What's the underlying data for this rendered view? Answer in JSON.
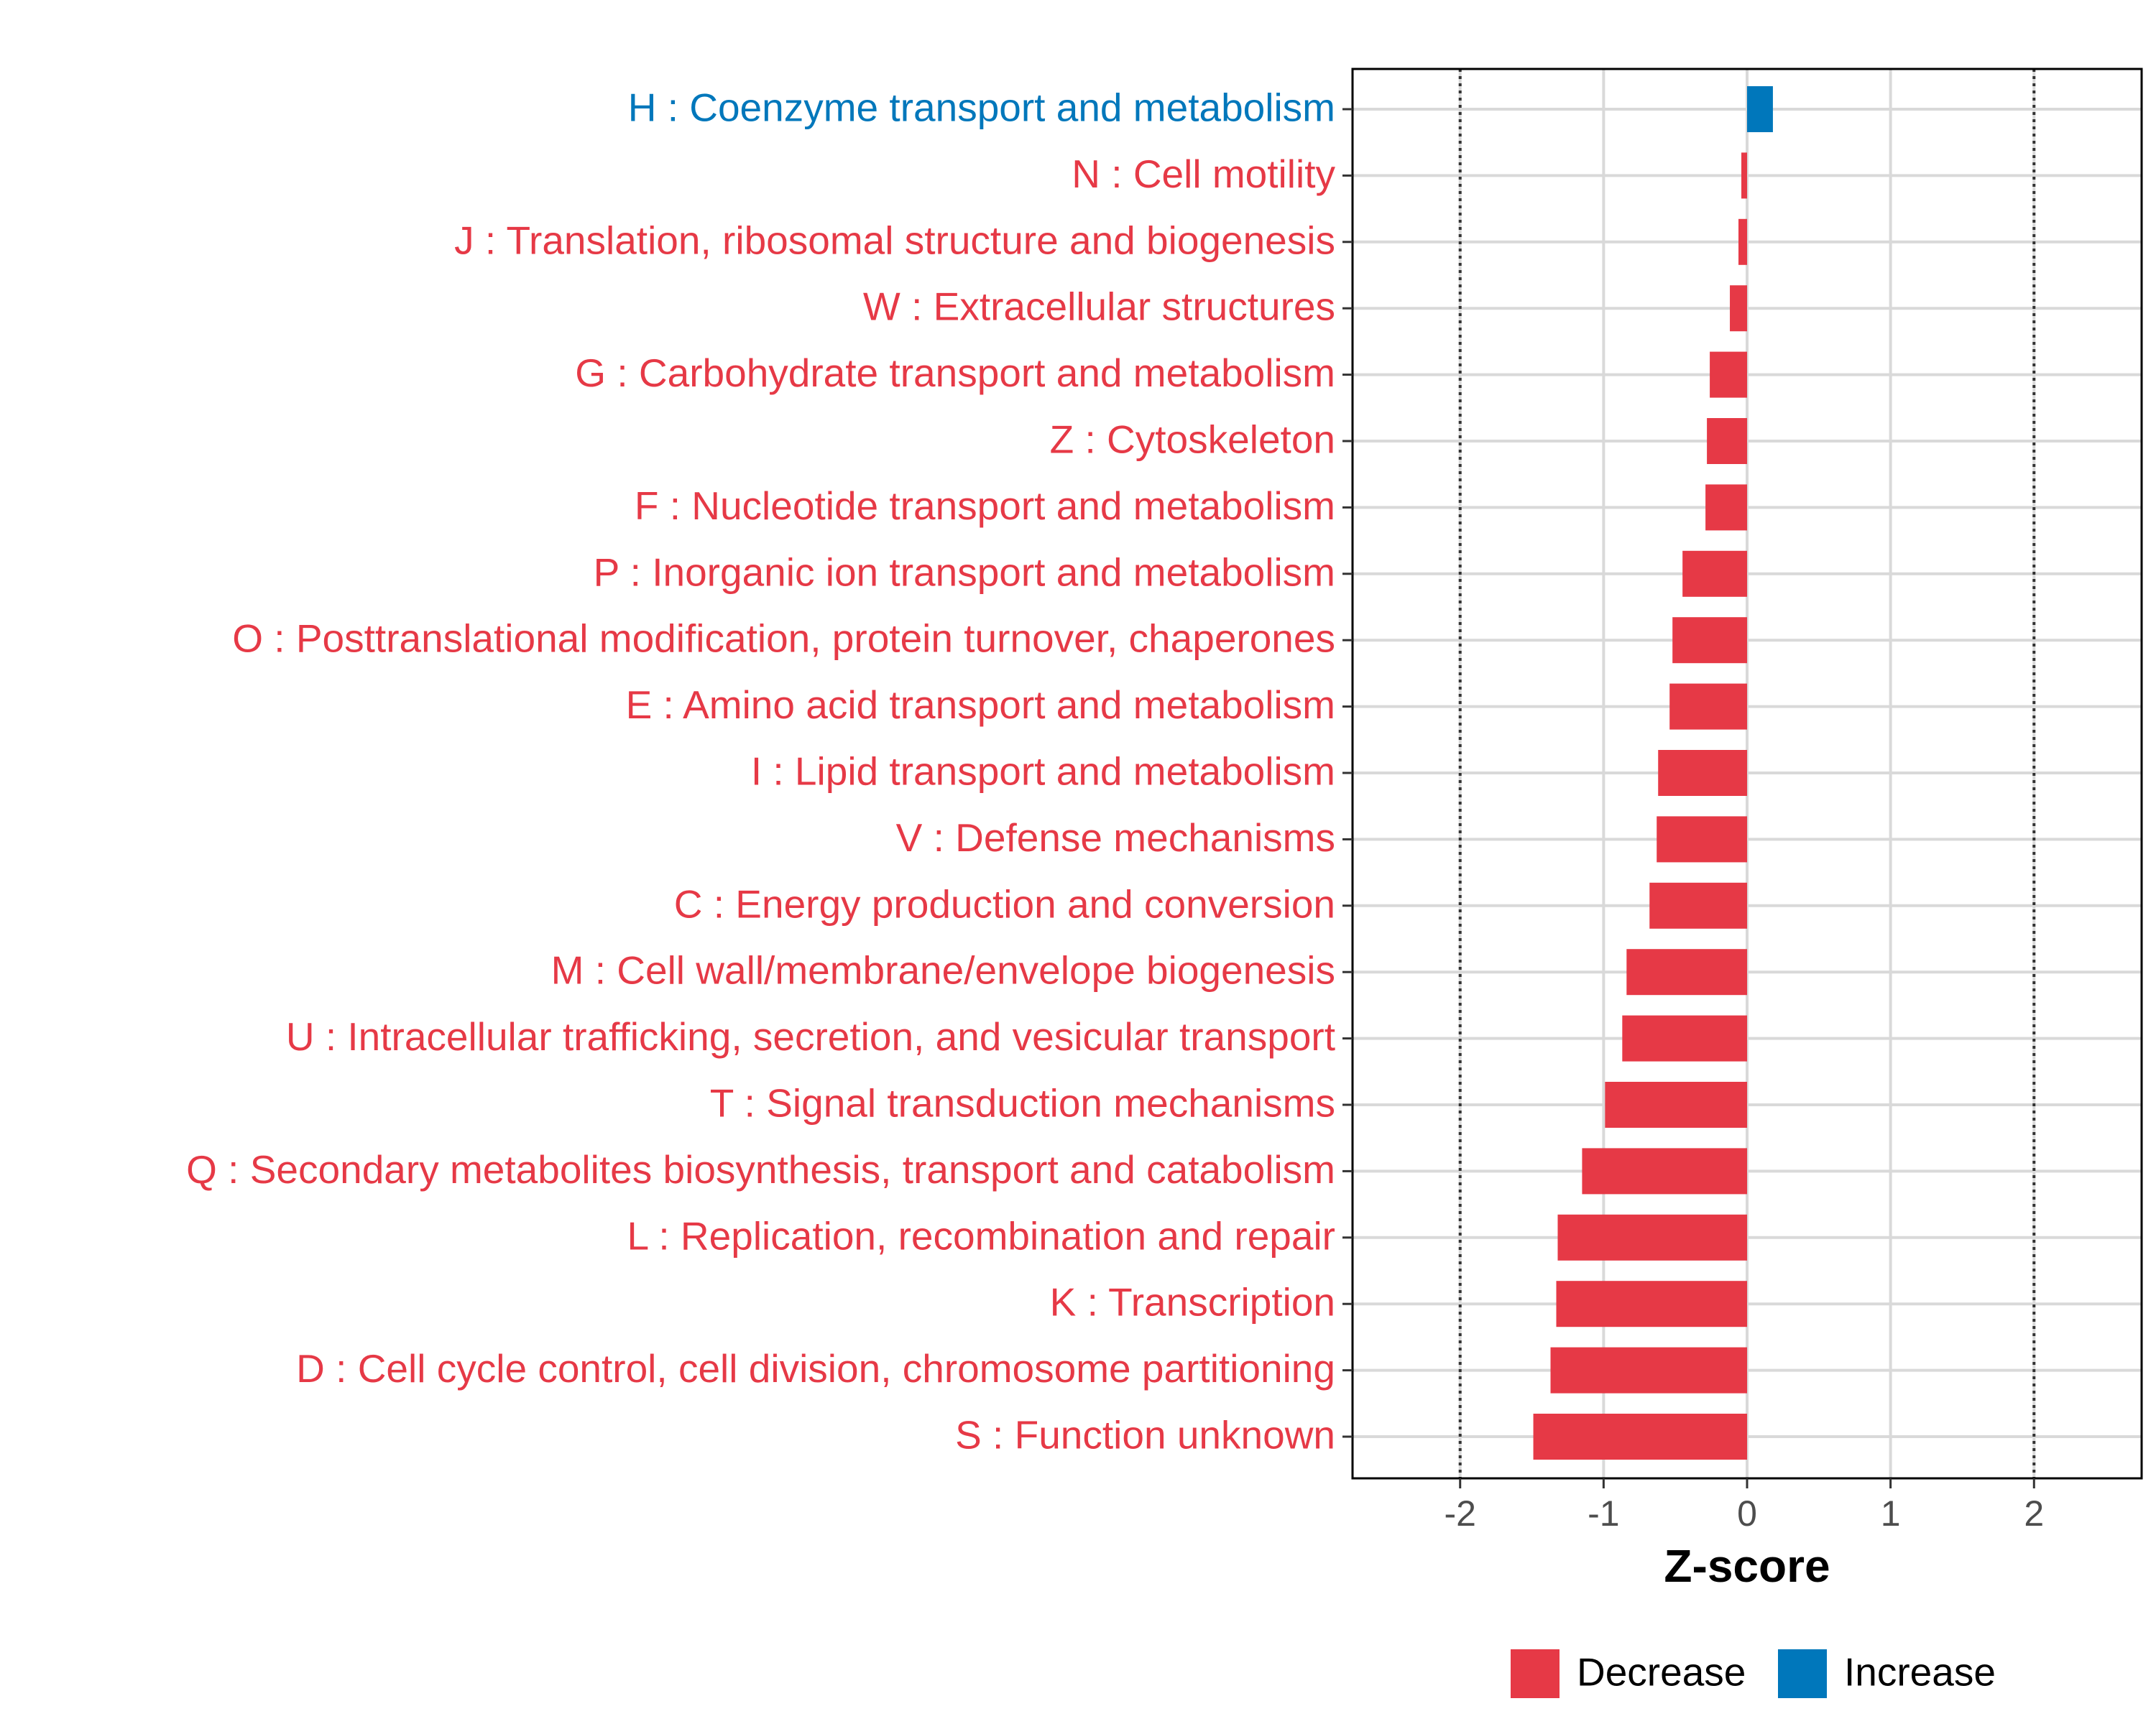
{
  "chart_data": {
    "type": "bar",
    "orientation": "horizontal",
    "title": "",
    "xlabel": "Z-score",
    "ylabel": "",
    "xlim": [
      -2.75,
      2.75
    ],
    "xticks": [
      -2,
      -1,
      0,
      1,
      2
    ],
    "tick_labels": [
      "-2",
      "-1",
      "0",
      "1",
      "2"
    ],
    "reference_lines": [
      -2,
      2
    ],
    "grid": true,
    "categories": [
      "H : Coenzyme transport and metabolism",
      "N : Cell motility",
      "J : Translation, ribosomal structure and biogenesis",
      "W : Extracellular structures",
      "G : Carbohydrate transport and metabolism",
      "Z : Cytoskeleton",
      "F : Nucleotide transport and metabolism",
      "P : Inorganic ion transport and metabolism",
      "O : Posttranslational modification, protein turnover, chaperones",
      "E : Amino acid transport and metabolism",
      "I : Lipid transport and metabolism",
      "V : Defense mechanisms",
      "C : Energy production and conversion",
      "M : Cell wall/membrane/envelope biogenesis",
      "U : Intracellular trafficking, secretion, and vesicular transport",
      "T : Signal transduction mechanisms",
      "Q : Secondary metabolites biosynthesis, transport and catabolism",
      "L : Replication, recombination and repair",
      "K : Transcription",
      "D : Cell cycle control, cell division, chromosome partitioning",
      "S : Function unknown"
    ],
    "values": [
      0.18,
      -0.04,
      -0.06,
      -0.12,
      -0.26,
      -0.28,
      -0.29,
      -0.45,
      -0.52,
      -0.54,
      -0.62,
      -0.63,
      -0.68,
      -0.84,
      -0.87,
      -0.99,
      -1.15,
      -1.32,
      -1.33,
      -1.37,
      -1.49
    ],
    "groups": [
      "Increase",
      "Decrease",
      "Decrease",
      "Decrease",
      "Decrease",
      "Decrease",
      "Decrease",
      "Decrease",
      "Decrease",
      "Decrease",
      "Decrease",
      "Decrease",
      "Decrease",
      "Decrease",
      "Decrease",
      "Decrease",
      "Decrease",
      "Decrease",
      "Decrease",
      "Decrease",
      "Decrease"
    ],
    "legend": {
      "position": "bottom",
      "entries": [
        {
          "label": "Decrease",
          "color": "#e63946"
        },
        {
          "label": "Increase",
          "color": "#0077bb"
        }
      ]
    },
    "colors": {
      "Decrease": "#e63946",
      "Increase": "#0077bb"
    }
  }
}
